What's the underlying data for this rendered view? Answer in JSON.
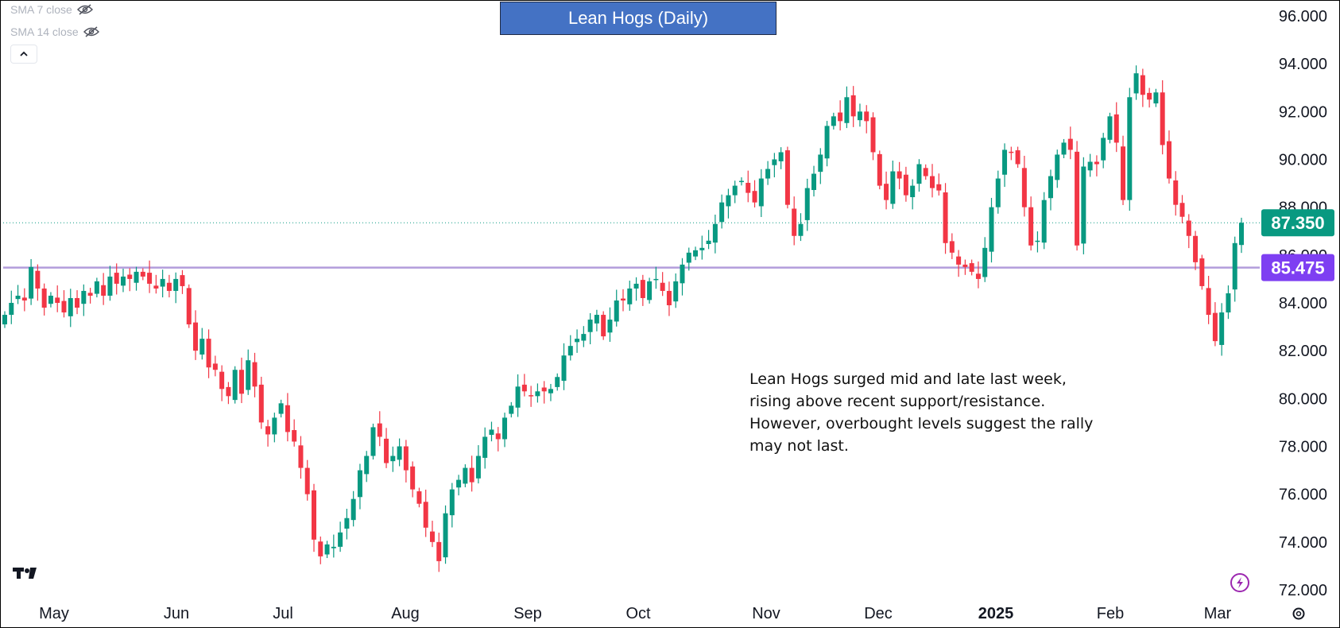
{
  "title": "Lean Hogs (Daily)",
  "legend": [
    {
      "label": "SMA 7 close",
      "icon": "eye-off-icon"
    },
    {
      "label": "SMA 14 close",
      "icon": "eye-off-icon"
    }
  ],
  "annotation": [
    "Lean Hogs surged mid and late last week,",
    "rising above recent support/resistance.",
    "However,  overbought levels suggest the rally",
    "may not last."
  ],
  "colors": {
    "up": "#089981",
    "down": "#f23645",
    "support_line": "#b39ddb",
    "support_tag": "#7e3ff2",
    "last_price_tag": "#089981"
  },
  "chart_data": {
    "type": "candlestick",
    "title": "Lean Hogs (Daily)",
    "ylim": [
      72,
      96.5
    ],
    "y_ticks": [
      "72.000",
      "74.000",
      "76.000",
      "78.000",
      "80.000",
      "82.000",
      "84.000",
      "86.000",
      "88.000",
      "90.000",
      "92.000",
      "94.000",
      "96.000"
    ],
    "x_ticks": [
      "May",
      "Jun",
      "Jul",
      "Aug",
      "Sep",
      "Oct",
      "Nov",
      "Dec",
      "2025",
      "Feb",
      "Mar"
    ],
    "last_price": {
      "label": "87.350",
      "value": 87.35
    },
    "support_level": {
      "label": "85.475",
      "value": 85.475
    },
    "closes": [
      83.5,
      84.0,
      84.3,
      84.1,
      85.5,
      84.6,
      83.8,
      84.3,
      84.0,
      83.6,
      84.2,
      83.8,
      84.5,
      84.3,
      84.9,
      84.3,
      85.1,
      84.8,
      85.1,
      85.0,
      85.3,
      85.1,
      84.8,
      84.6,
      85.0,
      84.5,
      85.0,
      84.7,
      83.1,
      82.0,
      82.5,
      81.3,
      81.2,
      80.4,
      80.1,
      81.2,
      80.2,
      81.6,
      80.5,
      79.0,
      78.5,
      79.2,
      79.8,
      78.6,
      78.2,
      77.1,
      76.0,
      74.1,
      73.4,
      73.9,
      73.8,
      74.4,
      75.0,
      75.8,
      77.0,
      77.6,
      78.8,
      78.4,
      77.3,
      77.6,
      78.0,
      77.0,
      76.2,
      75.6,
      74.6,
      74.0,
      73.2,
      75.2,
      76.2,
      76.6,
      77.1,
      76.5,
      77.6,
      78.4,
      78.7,
      78.3,
      79.2,
      79.7,
      80.5,
      80.3,
      80.1,
      80.3,
      80.3,
      80.4,
      80.9,
      81.8,
      82.2,
      82.5,
      82.7,
      83.3,
      83.5,
      82.6,
      83.3,
      84.1,
      84.1,
      84.6,
      84.8,
      84.2,
      84.9,
      85.0,
      84.5,
      83.9,
      84.9,
      85.6,
      86.1,
      86.2,
      86.3,
      86.6,
      87.3,
      88.2,
      88.5,
      88.9,
      89.1,
      88.6,
      88.2,
      89.2,
      89.6,
      90.0,
      90.3,
      88.1,
      86.8,
      87.3,
      88.8,
      89.4,
      90.2,
      91.4,
      91.8,
      91.6,
      92.6,
      91.8,
      92.0,
      91.6,
      90.3,
      88.9,
      88.3,
      89.5,
      89.2,
      88.5,
      88.9,
      89.8,
      89.3,
      88.8,
      88.7,
      86.5,
      86.1,
      85.6,
      85.5,
      85.3,
      85.0,
      86.3,
      88.0,
      89.2,
      90.4,
      90.3,
      89.8,
      88.0,
      86.4,
      86.6,
      88.3,
      89.3,
      90.2,
      90.7,
      90.4,
      86.4,
      89.7,
      89.9,
      89.8,
      90.9,
      91.8,
      90.7,
      88.3,
      92.6,
      93.6,
      92.7,
      92.5,
      92.8,
      90.6,
      89.2,
      88.1,
      87.6,
      86.8,
      85.7,
      84.7,
      83.5,
      82.4,
      83.6,
      84.4,
      86.5,
      87.35
    ],
    "series_note": ""
  }
}
